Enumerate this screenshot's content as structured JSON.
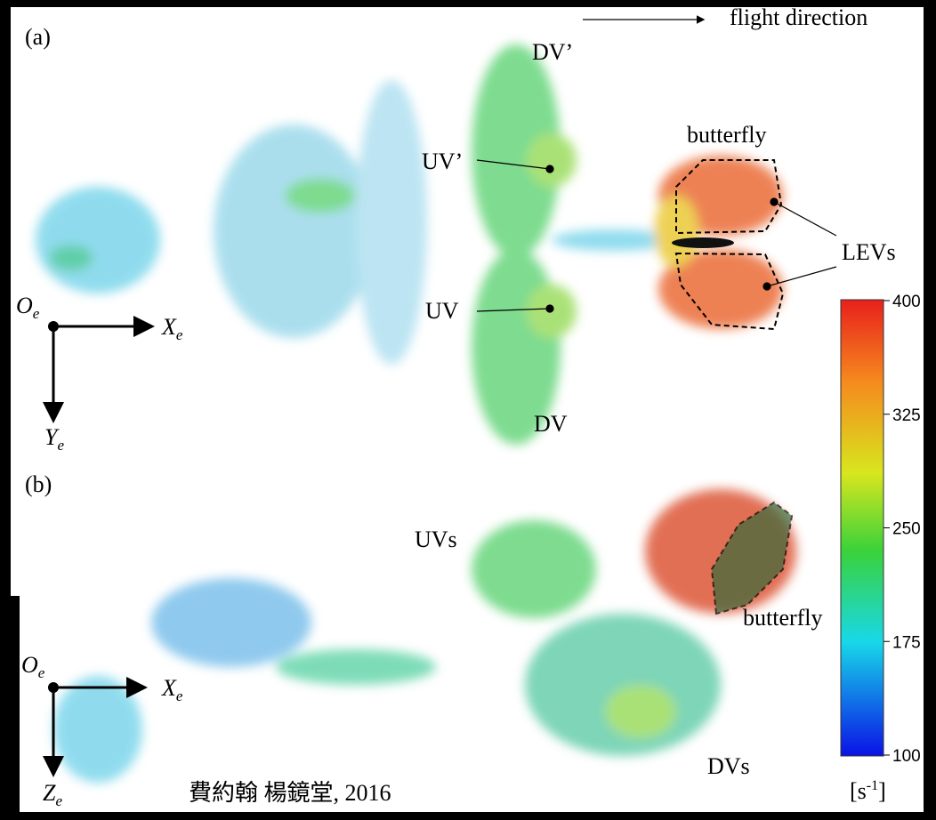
{
  "panel_a": {
    "label": "(a)",
    "flight_direction": "flight direction",
    "annotations": [
      "DV’",
      "butterfly",
      "UV’",
      "LEVs",
      "UV",
      "DV"
    ],
    "axes": {
      "origin": {
        "base": "O",
        "sub": "e"
      },
      "x": {
        "base": "X",
        "sub": "e"
      },
      "y": {
        "base": "Y",
        "sub": "e"
      }
    }
  },
  "panel_b": {
    "label": "(b)",
    "annotations": [
      "UVs",
      "butterfly",
      "DVs"
    ],
    "axes": {
      "origin": {
        "base": "O",
        "sub": "e"
      },
      "x": {
        "base": "X",
        "sub": "e"
      },
      "z": {
        "base": "Z",
        "sub": "e"
      }
    }
  },
  "colorbar": {
    "ticks": [
      400,
      325,
      250,
      175,
      100
    ],
    "unit": {
      "base": "[s",
      "sup": "-1",
      "end": "]"
    }
  },
  "credit": "費約翰 楊鏡堂, 2016"
}
